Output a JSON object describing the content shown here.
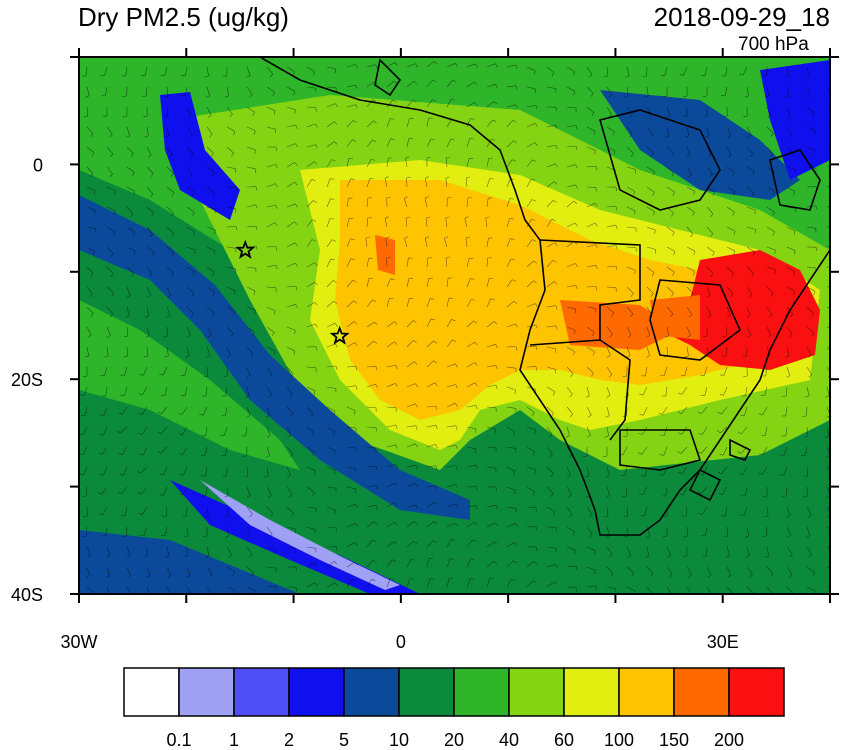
{
  "header": {
    "title": "Dry PM2.5 (ug/kg)",
    "datetime": "2018-09-29_18",
    "level": "700 hPa"
  },
  "axes": {
    "lon_labels": [
      {
        "lon": -30,
        "text": "30W"
      },
      {
        "lon": 0,
        "text": "0"
      },
      {
        "lon": 30,
        "text": "30E"
      }
    ],
    "lat_labels": [
      {
        "lat": 0,
        "text": "0"
      },
      {
        "lat": -20,
        "text": "20S"
      },
      {
        "lat": -40,
        "text": "40S"
      }
    ],
    "lon_range": [
      -30,
      40
    ],
    "lat_range": [
      -40,
      10
    ]
  },
  "colorbar": {
    "colors": [
      "#ffffff",
      "#a0a0f5",
      "#4f4ff5",
      "#1010ee",
      "#0b4a9a",
      "#0c8a3c",
      "#2eb52a",
      "#84d414",
      "#e1ee10",
      "#ffc400",
      "#ff6a00",
      "#fa1010"
    ],
    "labels": [
      "0.1",
      "1",
      "2",
      "5",
      "10",
      "20",
      "40",
      "60",
      "100",
      "150",
      "200"
    ]
  },
  "markers": [
    {
      "name": "star-1",
      "lon": -14.5,
      "lat": -8.0
    },
    {
      "name": "star-2",
      "lon": -5.7,
      "lat": -16.0
    }
  ]
}
